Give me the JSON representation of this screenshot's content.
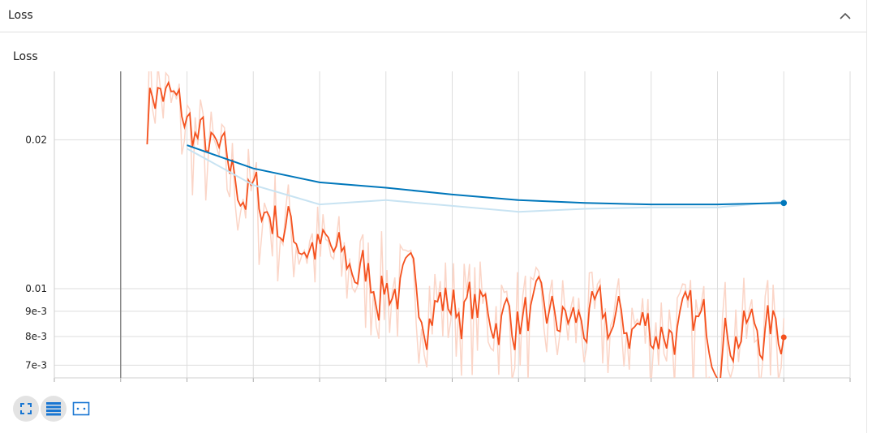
{
  "section": {
    "title": "Loss"
  },
  "card": {
    "title": "Loss"
  },
  "colors": {
    "run_smoothed": "#f4511e",
    "run_raw": "#fbd5c7",
    "eval_smoothed": "#0077bb",
    "eval_raw": "#c8e3f2",
    "grid": "#dddddd",
    "tick_text": "#212121"
  },
  "toolbar": {
    "icons": [
      "fullscreen-icon",
      "toggle-log-icon",
      "fit-domain-icon"
    ]
  },
  "chart_data": {
    "type": "line",
    "title": "Loss",
    "xlabel": "",
    "ylabel": "",
    "yscale": "log",
    "ylim": [
      0.0066,
      0.0275
    ],
    "yticks": [
      0.02,
      0.01,
      0.009,
      0.008,
      0.007
    ],
    "ytick_labels": [
      "0.02",
      "0.01",
      "9e-3",
      "8e-3",
      "7e-3"
    ],
    "xlim": [
      0,
      12
    ],
    "grid": true,
    "legend": "none",
    "series": [
      {
        "role": "eval",
        "x": [
          2,
          3,
          4,
          5,
          6,
          7,
          8,
          9,
          10,
          11
        ],
        "raw": [
          0.0192,
          0.0162,
          0.0148,
          0.0151,
          0.0147,
          0.0143,
          0.0145,
          0.0146,
          0.0146,
          0.015
        ],
        "smoothed": [
          0.0195,
          0.0175,
          0.0164,
          0.016,
          0.0155,
          0.0151,
          0.0149,
          0.0148,
          0.0148,
          0.0149
        ]
      },
      {
        "role": "train",
        "x_start": 1.4,
        "x_end": 11,
        "count": 240,
        "start_value": 0.027,
        "end_value": 0.0082
      }
    ]
  }
}
